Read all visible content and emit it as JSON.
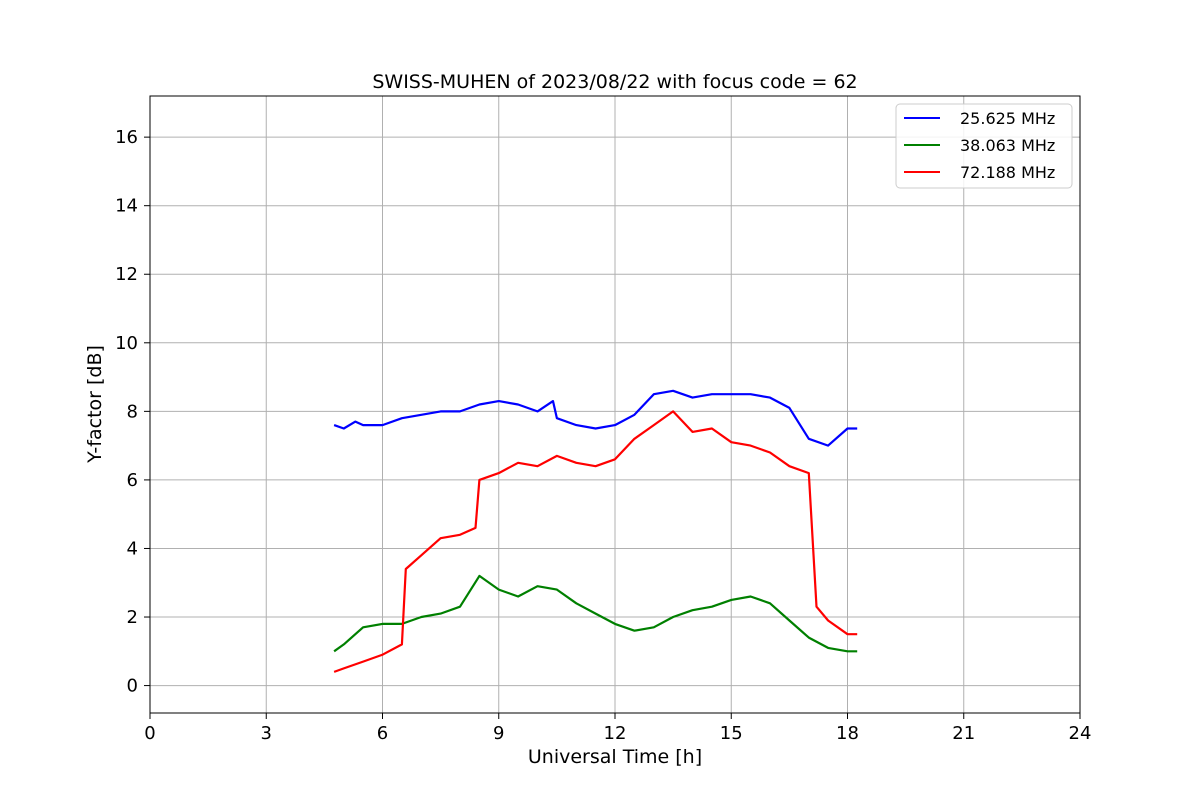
{
  "chart_data": {
    "type": "line",
    "title": "SWISS-MUHEN of 2023/08/22 with focus code = 62",
    "xlabel": "Universal Time [h]",
    "ylabel": "Y-factor [dB]",
    "xlim": [
      0,
      24
    ],
    "ylim": [
      -0.8,
      17.2
    ],
    "xticks": [
      0,
      3,
      6,
      9,
      12,
      15,
      18,
      21,
      24
    ],
    "yticks": [
      0,
      2,
      4,
      6,
      8,
      10,
      12,
      14,
      16
    ],
    "grid": true,
    "legend_position": "top-right",
    "series": [
      {
        "name": "25.625 MHz",
        "color": "#0000ff",
        "x": [
          4.75,
          5.0,
          5.3,
          5.5,
          6.0,
          6.5,
          7.0,
          7.5,
          8.0,
          8.5,
          9.0,
          9.5,
          10.0,
          10.4,
          10.5,
          11.0,
          11.5,
          12.0,
          12.5,
          13.0,
          13.5,
          14.0,
          14.5,
          15.0,
          15.5,
          16.0,
          16.5,
          17.0,
          17.5,
          18.0,
          18.25
        ],
        "y": [
          7.6,
          7.5,
          7.7,
          7.6,
          7.6,
          7.8,
          7.9,
          8.0,
          8.0,
          8.2,
          8.3,
          8.2,
          8.0,
          8.3,
          7.8,
          7.6,
          7.5,
          7.6,
          7.9,
          8.5,
          8.6,
          8.4,
          8.5,
          8.5,
          8.5,
          8.4,
          8.1,
          7.2,
          7.0,
          7.5,
          7.5
        ]
      },
      {
        "name": "38.063 MHz",
        "color": "#008000",
        "x": [
          4.75,
          5.0,
          5.5,
          6.0,
          6.5,
          7.0,
          7.5,
          8.0,
          8.5,
          9.0,
          9.5,
          10.0,
          10.5,
          11.0,
          11.5,
          12.0,
          12.5,
          13.0,
          13.5,
          14.0,
          14.5,
          15.0,
          15.5,
          16.0,
          16.5,
          17.0,
          17.5,
          18.0,
          18.25
        ],
        "y": [
          1.0,
          1.2,
          1.7,
          1.8,
          1.8,
          2.0,
          2.1,
          2.3,
          3.2,
          2.8,
          2.6,
          2.9,
          2.8,
          2.4,
          2.1,
          1.8,
          1.6,
          1.7,
          2.0,
          2.2,
          2.3,
          2.5,
          2.6,
          2.4,
          1.9,
          1.4,
          1.1,
          1.0,
          1.0
        ]
      },
      {
        "name": "72.188 MHz",
        "color": "#ff0000",
        "x": [
          4.75,
          5.0,
          5.5,
          6.0,
          6.5,
          6.6,
          7.0,
          7.5,
          8.0,
          8.4,
          8.5,
          9.0,
          9.5,
          10.0,
          10.5,
          11.0,
          11.5,
          12.0,
          12.5,
          13.0,
          13.5,
          14.0,
          14.5,
          15.0,
          15.5,
          16.0,
          16.5,
          17.0,
          17.2,
          17.5,
          18.0,
          18.25
        ],
        "y": [
          0.4,
          0.5,
          0.7,
          0.9,
          1.2,
          3.4,
          3.8,
          4.3,
          4.4,
          4.6,
          6.0,
          6.2,
          6.5,
          6.4,
          6.7,
          6.5,
          6.4,
          6.6,
          7.2,
          7.6,
          8.0,
          7.4,
          7.5,
          7.1,
          7.0,
          6.8,
          6.4,
          6.2,
          2.3,
          1.9,
          1.5,
          1.5
        ]
      }
    ]
  }
}
